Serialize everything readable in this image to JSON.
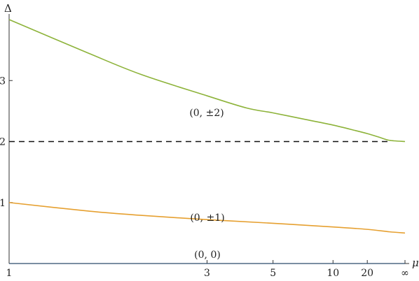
{
  "chart_data": {
    "type": "line",
    "title": "",
    "xlabel": "μ",
    "ylabel": "Δ",
    "x_ticks": [
      "1",
      "3",
      "5",
      "10",
      "20",
      "∞"
    ],
    "y_ticks": [
      "1",
      "2",
      "3"
    ],
    "ylim": [
      0,
      4
    ],
    "grid": false,
    "legend": "none",
    "series": [
      {
        "color": "#8db33a",
        "label": "(0, ±2)",
        "points": [
          [
            1,
            4.0
          ],
          [
            1.5,
            3.45
          ],
          [
            2,
            3.1
          ],
          [
            3,
            2.75
          ],
          [
            4,
            2.55
          ],
          [
            5,
            2.47
          ],
          [
            7,
            2.36
          ],
          [
            10,
            2.27
          ],
          [
            15,
            2.18
          ],
          [
            20,
            2.13
          ],
          [
            30,
            2.07
          ],
          [
            50,
            2.02
          ],
          [
            "∞",
            2.0
          ]
        ]
      },
      {
        "color": "#e6a030",
        "label": "(0, ±1)",
        "points": [
          [
            1,
            1.0
          ],
          [
            1.5,
            0.86
          ],
          [
            2,
            0.79
          ],
          [
            3,
            0.72
          ],
          [
            5,
            0.66
          ],
          [
            10,
            0.6
          ],
          [
            20,
            0.56
          ],
          [
            50,
            0.52
          ],
          [
            "∞",
            0.5
          ]
        ]
      },
      {
        "color": "#2a4a6a",
        "label": "(0, 0)",
        "points": [
          [
            1,
            0.0
          ],
          [
            "∞",
            0.0
          ]
        ]
      }
    ],
    "reference_lines": [
      {
        "y": 2,
        "style": "dashed",
        "color": "#111111"
      }
    ]
  }
}
